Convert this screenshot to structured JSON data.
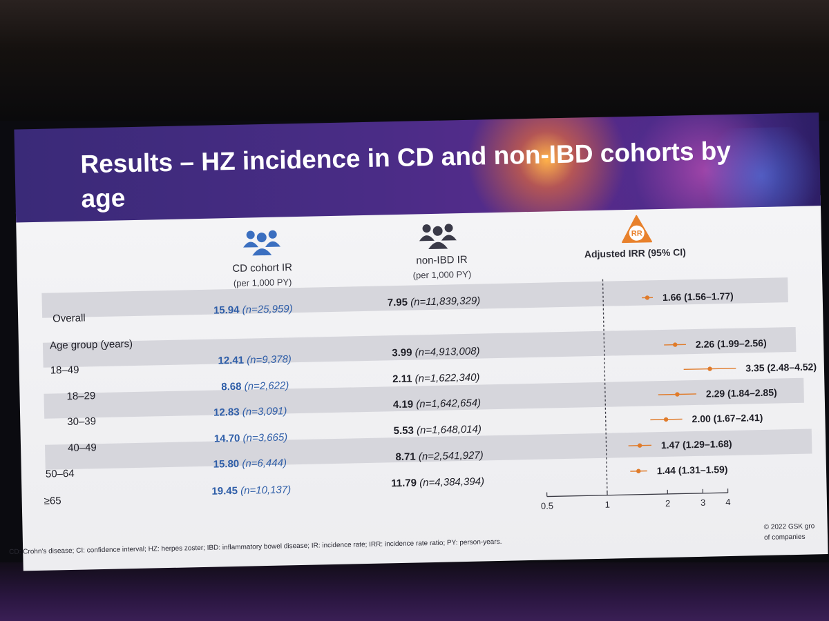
{
  "slide": {
    "title": "Results – HZ incidence in CD and non-IBD cohorts by age",
    "footnote": "CD: Crohn's disease; CI: confidence interval; HZ: herpes zoster; IBD: inflammatory bowel disease; IR: incidence rate; IRR: incidence rate ratio; PY: person-years.",
    "copyright_line1": "© 2022 GSK gro",
    "copyright_line2": "of companies"
  },
  "columns": {
    "cd": {
      "title": "CD cohort IR",
      "sub": "(per 1,000 PY)",
      "icon": "group-people-icon"
    },
    "non_ibd": {
      "title": "non-IBD IR",
      "sub": "(per 1,000 PY)",
      "icon": "group-people-icon"
    },
    "irr": {
      "title": "Adjusted IRR (95% CI)",
      "icon": "rr-warning-icon",
      "icon_text": "RR"
    }
  },
  "section_label": "Age group (years)",
  "rows": [
    {
      "label": "Overall",
      "cd_ir": "15.94",
      "cd_n": "(n=25,959)",
      "nibd_ir": "7.95",
      "nibd_n": "(n=11,839,329)",
      "irr_text": "1.66 (1.56–1.77)"
    },
    {
      "label": "18–49",
      "cd_ir": "12.41",
      "cd_n": "(n=9,378)",
      "nibd_ir": "3.99",
      "nibd_n": "(n=4,913,008)",
      "irr_text": "2.26 (1.99–2.56)"
    },
    {
      "label": "18–29",
      "cd_ir": "8.68",
      "cd_n": "(n=2,622)",
      "nibd_ir": "2.11",
      "nibd_n": "(n=1,622,340)",
      "irr_text": "3.35 (2.48–4.52)"
    },
    {
      "label": "30–39",
      "cd_ir": "12.83",
      "cd_n": "(n=3,091)",
      "nibd_ir": "4.19",
      "nibd_n": "(n=1,642,654)",
      "irr_text": "2.29 (1.84–2.85)"
    },
    {
      "label": "40–49",
      "cd_ir": "14.70",
      "cd_n": "(n=3,665)",
      "nibd_ir": "5.53",
      "nibd_n": "(n=1,648,014)",
      "irr_text": "2.00 (1.67–2.41)"
    },
    {
      "label": "50–64",
      "cd_ir": "15.80",
      "cd_n": "(n=6,444)",
      "nibd_ir": "8.71",
      "nibd_n": "(n=2,541,927)",
      "irr_text": "1.47 (1.29–1.68)"
    },
    {
      "label": "≥65",
      "cd_ir": "19.45",
      "cd_n": "(n=10,137)",
      "nibd_ir": "11.79",
      "nibd_n": "(n=4,384,394)",
      "irr_text": "1.44 (1.31–1.59)"
    }
  ],
  "chart_data": {
    "type": "scatter",
    "xscale": "log",
    "xlim": [
      0.5,
      4
    ],
    "xticks": [
      "0.5",
      "1",
      "2",
      "3",
      "4"
    ],
    "reference_line": 1,
    "marker_color": "#e07b2a",
    "series": [
      {
        "points": [
          {
            "x": 1.66,
            "low": 1.56,
            "high": 1.77
          },
          {
            "x": 2.26,
            "low": 1.99,
            "high": 2.56
          },
          {
            "x": 3.35,
            "low": 2.48,
            "high": 4.52
          },
          {
            "x": 2.29,
            "low": 1.84,
            "high": 2.85
          },
          {
            "x": 2.0,
            "low": 1.67,
            "high": 2.41
          },
          {
            "x": 1.47,
            "low": 1.29,
            "high": 1.68
          },
          {
            "x": 1.44,
            "low": 1.31,
            "high": 1.59
          }
        ]
      }
    ]
  },
  "colors": {
    "band": "#d6d6dc",
    "cd_text": "#2f5ea8",
    "cd_icon": "#3b6fc0",
    "non_ibd_icon": "#3a3a48",
    "rr_icon": "#e8812c",
    "marker": "#e07b2a"
  }
}
